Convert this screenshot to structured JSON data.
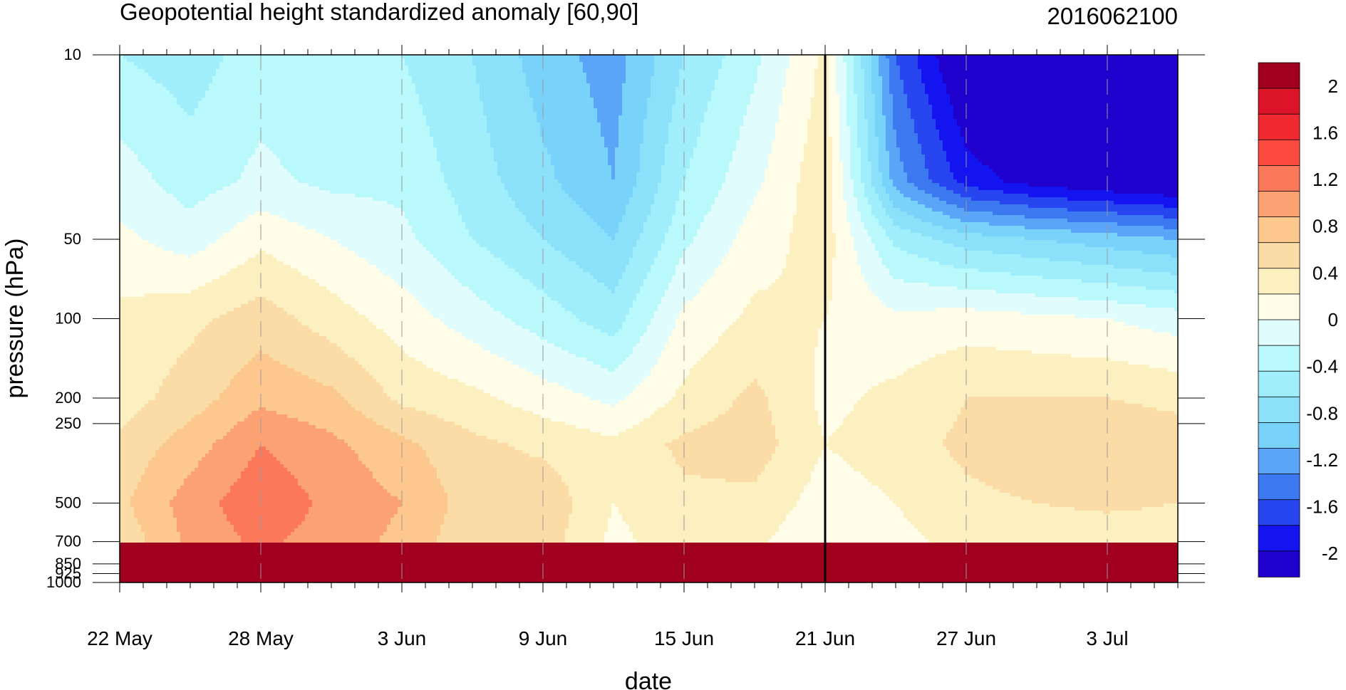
{
  "chart_data": {
    "type": "heatmap",
    "title": "Geopotential height standardized anomaly [60,90]",
    "date_label": "2016062100",
    "xlabel": "date",
    "ylabel": "pressure (hPa)",
    "y_scale": "log",
    "y_reversed": true,
    "xlim": [
      "22 May",
      "6 Jul"
    ],
    "ylim": [
      1000,
      10
    ],
    "x_ticks": [
      {
        "label": "22 May",
        "day": 0
      },
      {
        "label": "28 May",
        "day": 6
      },
      {
        "label": "3 Jun",
        "day": 12
      },
      {
        "label": "9 Jun",
        "day": 18
      },
      {
        "label": "15 Jun",
        "day": 24
      },
      {
        "label": "21 Jun",
        "day": 30
      },
      {
        "label": "27 Jun",
        "day": 36
      },
      {
        "label": "3 Jul",
        "day": 42
      }
    ],
    "y_ticks": [
      {
        "label": "10",
        "value": 10
      },
      {
        "label": "50",
        "value": 50
      },
      {
        "label": "100",
        "value": 100
      },
      {
        "label": "200",
        "value": 200
      },
      {
        "label": "250",
        "value": 250
      },
      {
        "label": "500",
        "value": 500
      },
      {
        "label": "700",
        "value": 700
      },
      {
        "label": "850",
        "value": 850
      },
      {
        "label": "925",
        "value": 925
      },
      {
        "label": "1000",
        "value": 1000
      }
    ],
    "forecast_start_day": 30,
    "colorbar": {
      "labels": [
        {
          "text": "2",
          "value": 2
        },
        {
          "text": "1.6",
          "value": 1.6
        },
        {
          "text": "1.2",
          "value": 1.2
        },
        {
          "text": "0.8",
          "value": 0.8
        },
        {
          "text": "0.4",
          "value": 0.4
        },
        {
          "text": "0",
          "value": 0
        },
        {
          "text": "-0.4",
          "value": -0.4
        },
        {
          "text": "-0.8",
          "value": -0.8
        },
        {
          "text": "-1.2",
          "value": -1.2
        },
        {
          "text": "-1.6",
          "value": -1.6
        },
        {
          "text": "-2",
          "value": -2
        }
      ],
      "colors": [
        "#1f00cc",
        "#1414f0",
        "#2846f0",
        "#3c78f0",
        "#5aa5f8",
        "#78d2fa",
        "#8ce1fa",
        "#a0eefc",
        "#b9f8fb",
        "#e0fcfc",
        "#fffde8",
        "#fcf0c0",
        "#fcdca6",
        "#fcc88e",
        "#fca272",
        "#fc785a",
        "#fc4a40",
        "#f02830",
        "#dc1428",
        "#a0001e"
      ],
      "bounds": [
        -2.2,
        -2.0,
        -1.8,
        -1.6,
        -1.4,
        -1.2,
        -1.0,
        -0.8,
        -0.6,
        -0.4,
        -0.2,
        0.0,
        0.2,
        0.4,
        0.6,
        0.8,
        1.0,
        1.2,
        1.4,
        1.6,
        1.8,
        2.0,
        2.2
      ]
    },
    "grid_days": [
      0,
      3,
      6,
      9,
      12,
      15,
      18,
      21,
      24,
      27,
      30,
      33,
      36,
      39,
      42,
      45
    ],
    "grid_levels": [
      10,
      30,
      50,
      100,
      200,
      300,
      500,
      700,
      1000
    ],
    "values": [
      [
        -0.6,
        -0.3,
        -0.15,
        0.05,
        0.1,
        0.25,
        0.35,
        0.25
      ],
      [
        -0.7,
        -0.5,
        -0.3,
        0.15,
        0.3,
        0.5,
        0.7,
        0.65
      ],
      [
        -0.5,
        -0.35,
        -0.05,
        0.3,
        0.55,
        0.8,
        0.95,
        0.85
      ],
      [
        -0.6,
        -0.45,
        -0.2,
        0.1,
        0.45,
        0.65,
        0.75,
        0.7
      ],
      [
        -0.6,
        -0.45,
        -0.35,
        -0.1,
        0.15,
        0.45,
        0.6,
        0.55
      ],
      [
        -0.8,
        -0.7,
        -0.6,
        -0.3,
        0.05,
        0.25,
        0.3,
        0.25
      ],
      [
        -1.1,
        -0.95,
        -0.8,
        -0.5,
        -0.1,
        0.15,
        0.35,
        0.3
      ],
      [
        -1.3,
        -1.2,
        -1.0,
        -0.7,
        -0.25,
        0.05,
        0.0,
        -0.05
      ],
      [
        -0.8,
        -0.6,
        -0.45,
        -0.15,
        0.05,
        0.25,
        0.15,
        0.1
      ],
      [
        -0.45,
        -0.25,
        -0.1,
        0.05,
        0.25,
        0.3,
        0.15,
        0.05
      ],
      [
        0.05,
        0.15,
        0.1,
        0.0,
        -0.05,
        0.0,
        -0.1,
        -0.2
      ],
      [
        -1.6,
        -1.3,
        -0.65,
        -0.15,
        0.05,
        0.1,
        0.0,
        -0.05
      ],
      [
        -2.3,
        -1.9,
        -0.9,
        -0.1,
        0.2,
        0.25,
        0.15,
        0.05
      ],
      [
        -2.4,
        -2.1,
        -1.0,
        -0.15,
        0.2,
        0.35,
        0.2,
        0.05
      ],
      [
        -2.4,
        -2.2,
        -1.1,
        -0.2,
        0.2,
        0.35,
        0.25,
        0.05
      ],
      [
        -2.4,
        -2.3,
        -1.2,
        -0.3,
        0.15,
        0.3,
        0.2,
        0.05
      ]
    ]
  }
}
